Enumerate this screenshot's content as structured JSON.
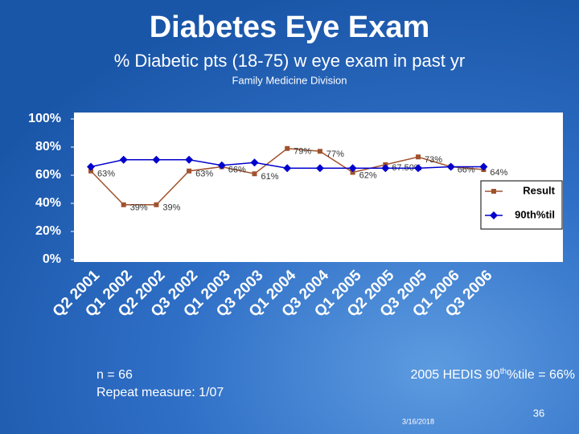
{
  "slide": {
    "title": "Diabetes Eye Exam",
    "subtitle": "% Diabetic pts (18-75) w eye exam in past yr",
    "division": "Family Medicine Division",
    "note_n": "n = 66",
    "note_repeat": "Repeat measure: 1/07",
    "hedis": {
      "pre": "2005 HEDIS 90",
      "sup": "th",
      "post": "%tile = 66%"
    },
    "date": "3/16/2018",
    "page": "36"
  },
  "chart_data": {
    "type": "line",
    "categories": [
      "Q2 2001",
      "Q1 2002",
      "Q2 2002",
      "Q3 2002",
      "Q1 2003",
      "Q3 2003",
      "Q1 2004",
      "Q3 2004",
      "Q1 2005",
      "Q2 2005",
      "Q3 2005",
      "Q1 2006",
      "Q3 2006"
    ],
    "series": [
      {
        "name": "Result",
        "color": "#a0522d",
        "marker": "square",
        "values": [
          63,
          39,
          39,
          63,
          66,
          61,
          79,
          77,
          62,
          67.5,
          73,
          66,
          64
        ],
        "value_labels": [
          "63%",
          "39%",
          "39%",
          "63%",
          "66%",
          "61%",
          "79%",
          "77%",
          "62%",
          "67.50%",
          "73%",
          "66%",
          "64%"
        ]
      },
      {
        "name": "90th%til",
        "color": "#0000cc",
        "marker": "diamond",
        "values": [
          66,
          71,
          71,
          71,
          67,
          69,
          65,
          65,
          65,
          65,
          65,
          66,
          66
        ]
      }
    ],
    "ylim": [
      0,
      100
    ],
    "yticks": [
      {
        "value": 0,
        "label": "0%"
      },
      {
        "value": 20,
        "label": "20%"
      },
      {
        "value": 40,
        "label": "40%"
      },
      {
        "value": 60,
        "label": "60%"
      },
      {
        "value": 80,
        "label": "80%"
      },
      {
        "value": 100,
        "label": "100%"
      }
    ],
    "legend": "right"
  }
}
